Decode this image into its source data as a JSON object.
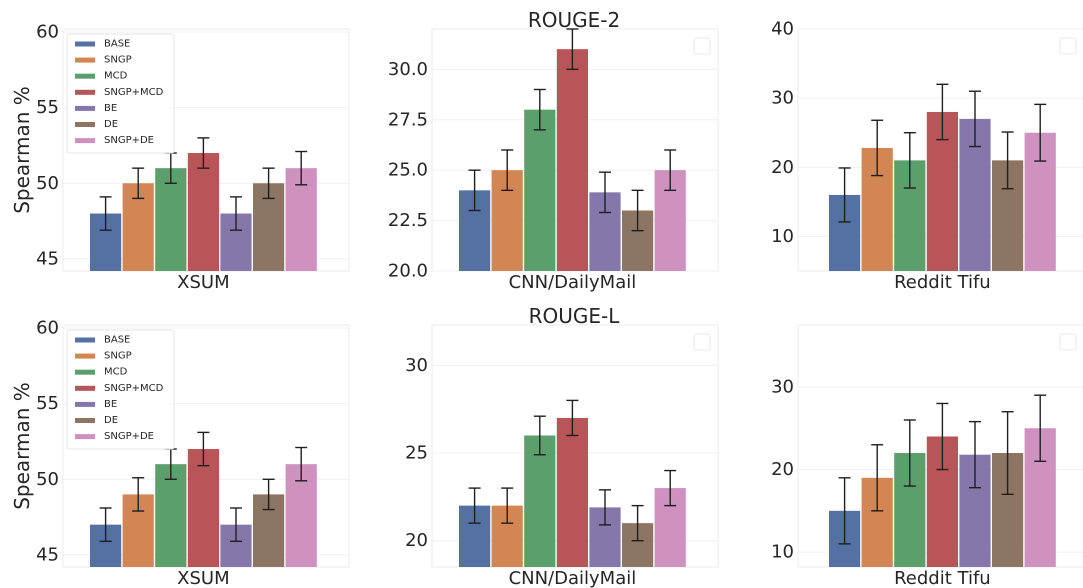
{
  "figure": {
    "row_titles": [
      "ROUGE-2",
      "ROUGE-L"
    ],
    "ylabel": "Spearman %",
    "legend_labels": [
      "BASE",
      "SNGP",
      "MCD",
      "SNGP+MCD",
      "BE",
      "DE",
      "SNGP+DE"
    ],
    "colors": [
      "#5571a3",
      "#d28654",
      "#5ba06c",
      "#b85558",
      "#8677ab",
      "#8c7563",
      "#cf91c0"
    ]
  },
  "chart_data": [
    {
      "type": "bar",
      "row": 0,
      "col": 0,
      "xlabel": "XSUM",
      "ylabel": "Spearman %",
      "ylim": [
        44.2,
        60.2
      ],
      "yticks": [
        45,
        50,
        55,
        60
      ],
      "ytick_labels": [
        "45",
        "50",
        "55",
        "60"
      ],
      "legend": "top-left",
      "grid": true,
      "series": [
        {
          "name": "BASE",
          "value": 48.0,
          "err": 1.1
        },
        {
          "name": "SNGP",
          "value": 50.0,
          "err": 1.0
        },
        {
          "name": "MCD",
          "value": 51.0,
          "err": 1.0
        },
        {
          "name": "SNGP+MCD",
          "value": 52.0,
          "err": 1.0
        },
        {
          "name": "BE",
          "value": 48.0,
          "err": 1.1
        },
        {
          "name": "DE",
          "value": 50.0,
          "err": 1.0
        },
        {
          "name": "SNGP+DE",
          "value": 51.0,
          "err": 1.1
        }
      ]
    },
    {
      "type": "bar",
      "row": 0,
      "col": 1,
      "xlabel": "CNN/DailyMail",
      "ylabel": "",
      "ylim": [
        20.0,
        32.0
      ],
      "yticks": [
        20.0,
        22.5,
        25.0,
        27.5,
        30.0
      ],
      "ytick_labels": [
        "20.0",
        "22.5",
        "25.0",
        "27.5",
        "30.0"
      ],
      "legend": "top-right (empty)",
      "grid": true,
      "series": [
        {
          "name": "BASE",
          "value": 24.0,
          "err": 1.0
        },
        {
          "name": "SNGP",
          "value": 25.0,
          "err": 1.0
        },
        {
          "name": "MCD",
          "value": 28.0,
          "err": 1.0
        },
        {
          "name": "SNGP+MCD",
          "value": 31.0,
          "err": 1.0
        },
        {
          "name": "BE",
          "value": 23.9,
          "err": 1.0
        },
        {
          "name": "DE",
          "value": 23.0,
          "err": 1.0
        },
        {
          "name": "SNGP+DE",
          "value": 25.0,
          "err": 1.0
        }
      ]
    },
    {
      "type": "bar",
      "row": 0,
      "col": 2,
      "xlabel": "Reddit Tifu",
      "ylabel": "",
      "ylim": [
        5.0,
        40.0
      ],
      "yticks": [
        10,
        20,
        30,
        40
      ],
      "ytick_labels": [
        "10",
        "20",
        "30",
        "40"
      ],
      "legend": "top-right (empty)",
      "grid": true,
      "series": [
        {
          "name": "BASE",
          "value": 16.0,
          "err": 3.9
        },
        {
          "name": "SNGP",
          "value": 22.8,
          "err": 4.0
        },
        {
          "name": "MCD",
          "value": 21.0,
          "err": 4.0
        },
        {
          "name": "SNGP+MCD",
          "value": 28.0,
          "err": 4.0
        },
        {
          "name": "BE",
          "value": 27.0,
          "err": 4.0
        },
        {
          "name": "DE",
          "value": 21.0,
          "err": 4.1
        },
        {
          "name": "SNGP+DE",
          "value": 25.0,
          "err": 4.1
        }
      ]
    },
    {
      "type": "bar",
      "row": 1,
      "col": 0,
      "xlabel": "XSUM",
      "ylabel": "Spearman %",
      "ylim": [
        44.2,
        60.2
      ],
      "yticks": [
        45,
        50,
        55,
        60
      ],
      "ytick_labels": [
        "45",
        "50",
        "55",
        "60"
      ],
      "legend": "top-left",
      "grid": true,
      "series": [
        {
          "name": "BASE",
          "value": 47.0,
          "err": 1.1
        },
        {
          "name": "SNGP",
          "value": 49.0,
          "err": 1.1
        },
        {
          "name": "MCD",
          "value": 51.0,
          "err": 1.0
        },
        {
          "name": "SNGP+MCD",
          "value": 52.0,
          "err": 1.1
        },
        {
          "name": "BE",
          "value": 47.0,
          "err": 1.1
        },
        {
          "name": "DE",
          "value": 49.0,
          "err": 1.0
        },
        {
          "name": "SNGP+DE",
          "value": 51.0,
          "err": 1.1
        }
      ]
    },
    {
      "type": "bar",
      "row": 1,
      "col": 1,
      "xlabel": "CNN/DailyMail",
      "ylabel": "",
      "ylim": [
        18.5,
        32.3
      ],
      "yticks": [
        20,
        25,
        30
      ],
      "ytick_labels": [
        "20",
        "25",
        "30"
      ],
      "legend": "top-right (empty)",
      "grid": true,
      "series": [
        {
          "name": "BASE",
          "value": 22.0,
          "err": 1.0
        },
        {
          "name": "SNGP",
          "value": 22.0,
          "err": 1.0
        },
        {
          "name": "MCD",
          "value": 26.0,
          "err": 1.1
        },
        {
          "name": "SNGP+MCD",
          "value": 27.0,
          "err": 1.0
        },
        {
          "name": "BE",
          "value": 21.9,
          "err": 1.0
        },
        {
          "name": "DE",
          "value": 21.0,
          "err": 1.0
        },
        {
          "name": "SNGP+DE",
          "value": 23.0,
          "err": 1.0
        }
      ]
    },
    {
      "type": "bar",
      "row": 1,
      "col": 2,
      "xlabel": "Reddit Tifu",
      "ylabel": "",
      "ylim": [
        8.2,
        37.5
      ],
      "yticks": [
        10,
        20,
        30
      ],
      "ytick_labels": [
        "10",
        "20",
        "30"
      ],
      "legend": "top-right (empty)",
      "grid": true,
      "series": [
        {
          "name": "BASE",
          "value": 15.0,
          "err": 4.0
        },
        {
          "name": "SNGP",
          "value": 19.0,
          "err": 4.0
        },
        {
          "name": "MCD",
          "value": 22.0,
          "err": 4.0
        },
        {
          "name": "SNGP+MCD",
          "value": 24.0,
          "err": 4.0
        },
        {
          "name": "BE",
          "value": 21.8,
          "err": 4.0
        },
        {
          "name": "DE",
          "value": 22.0,
          "err": 5.0
        },
        {
          "name": "SNGP+DE",
          "value": 25.0,
          "err": 4.0
        }
      ]
    }
  ]
}
